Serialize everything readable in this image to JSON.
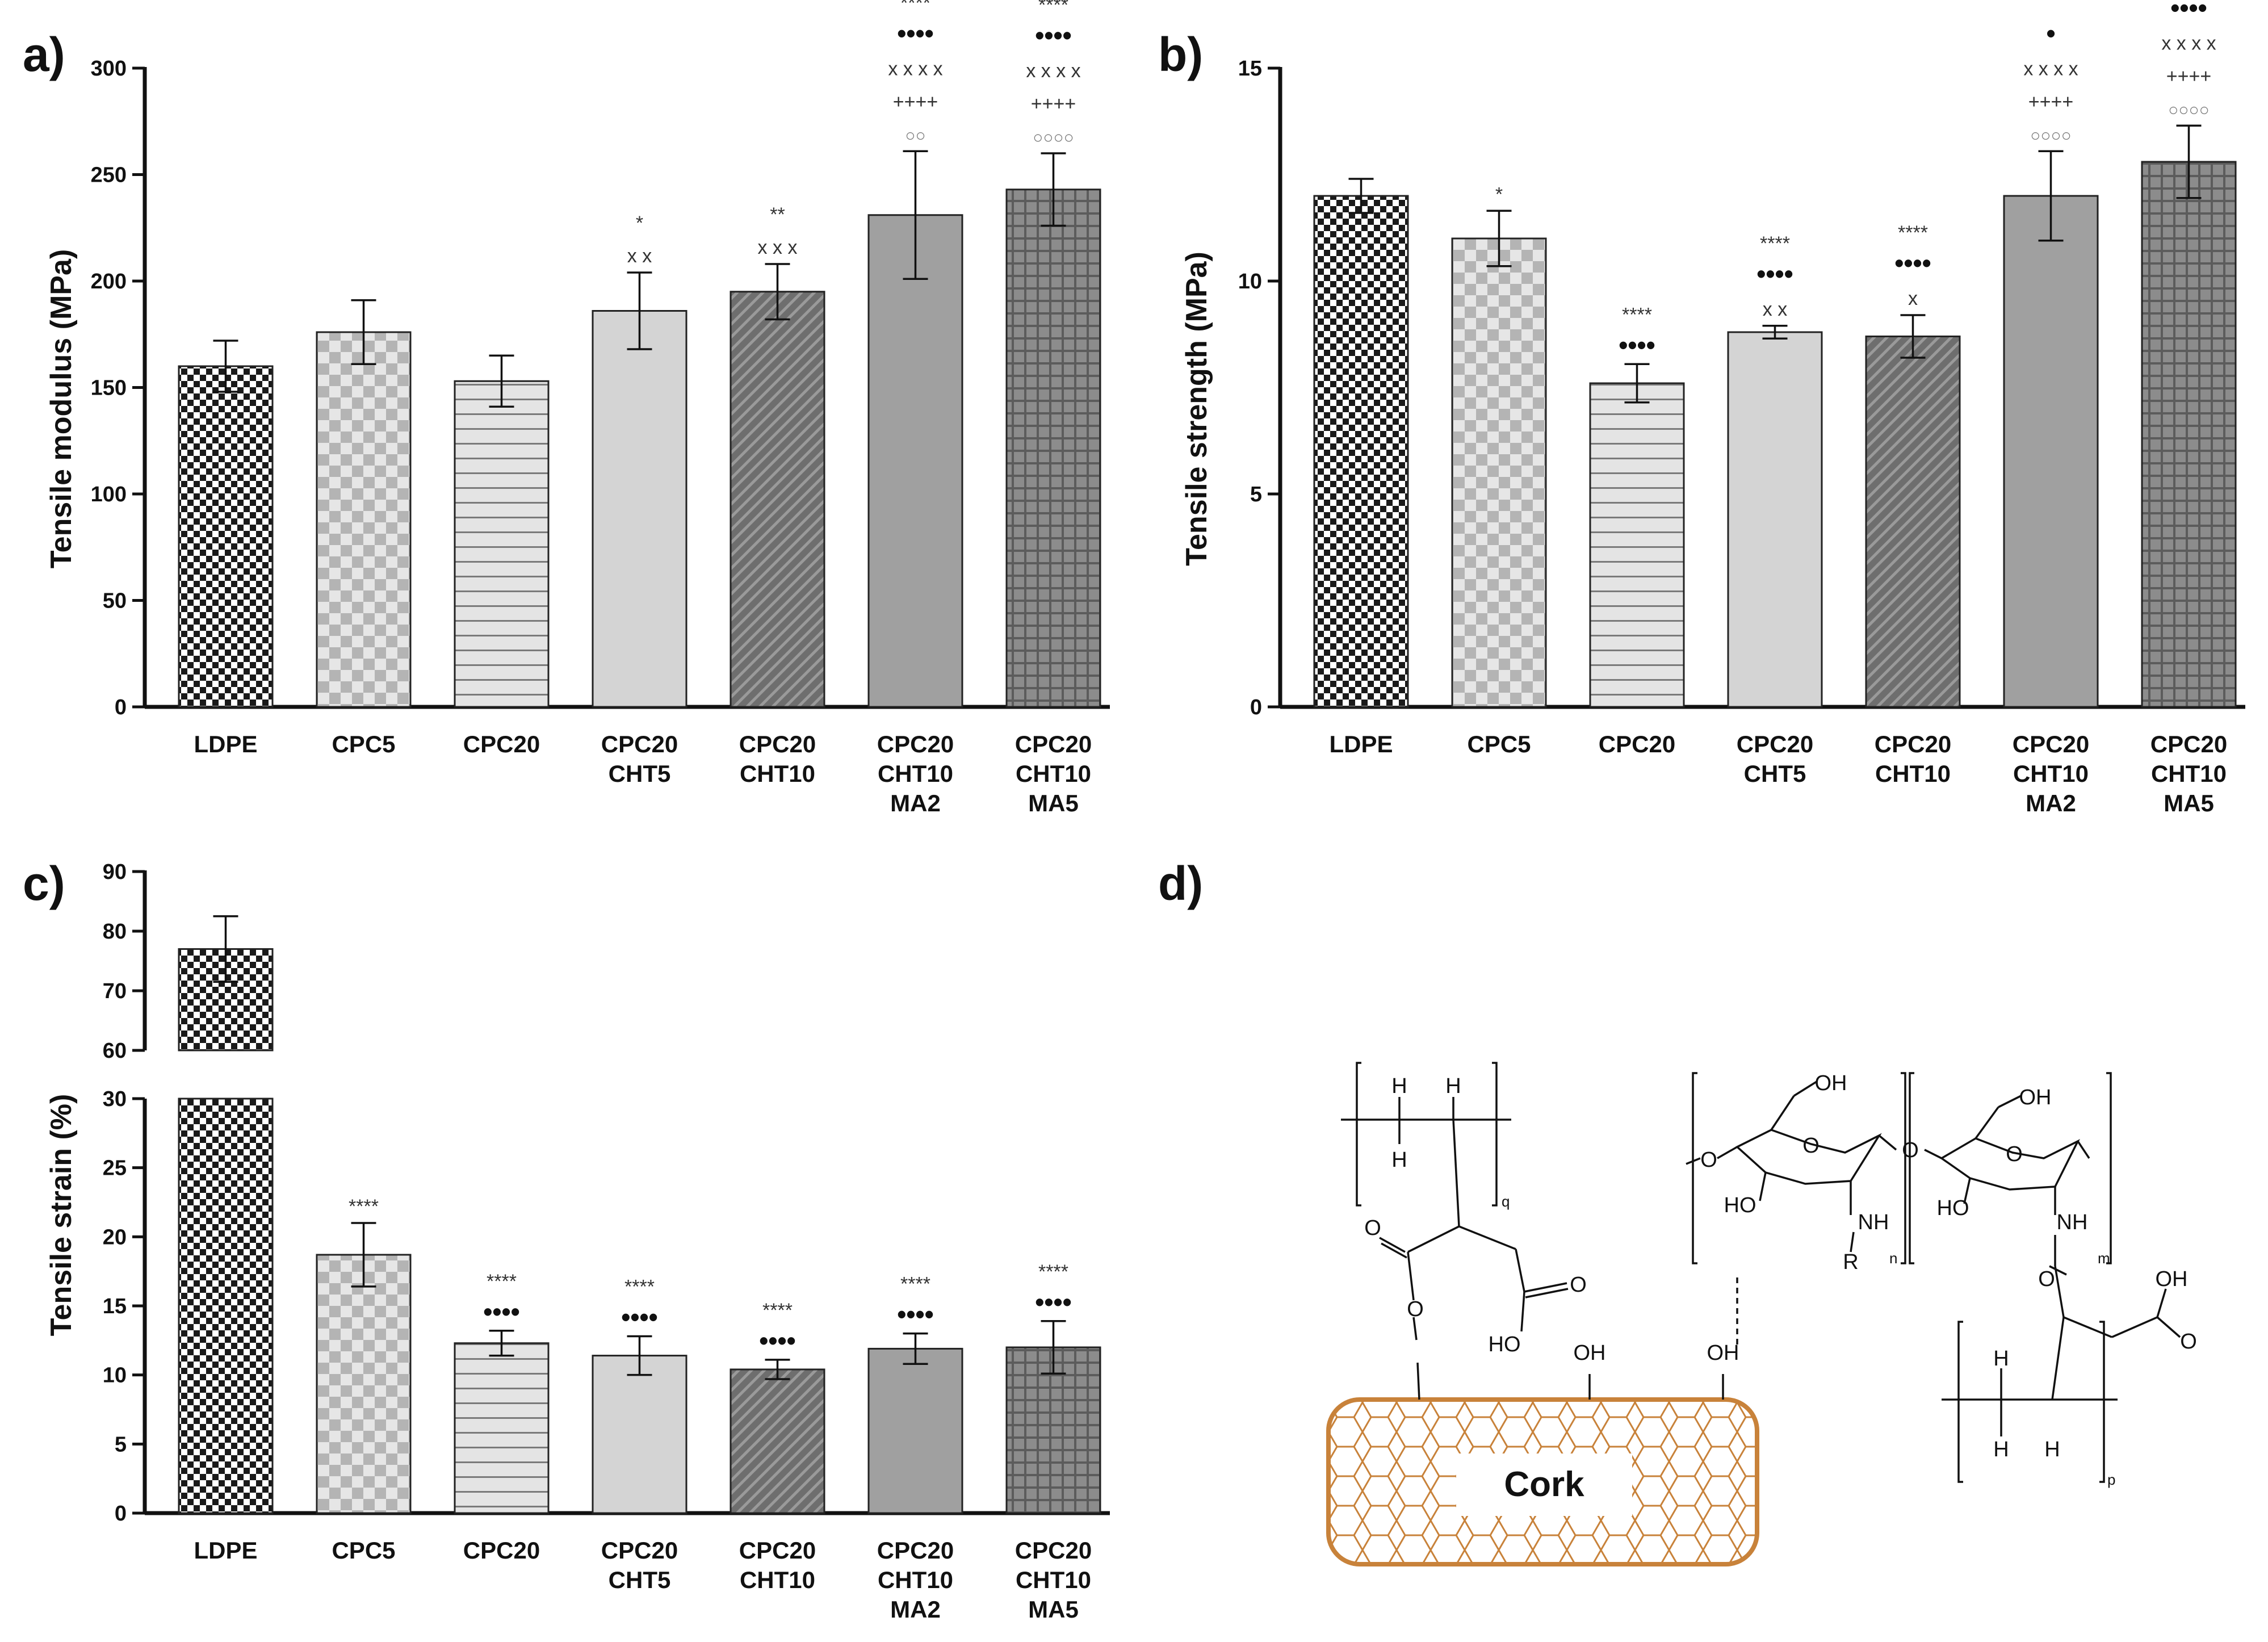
{
  "chart_data": [
    {
      "id": "a",
      "type": "bar",
      "panel_label": "a)",
      "ylabel": "Tensile modulus (MPa)",
      "ylim": [
        0,
        300
      ],
      "yticks": [
        0,
        50,
        100,
        150,
        200,
        250,
        300
      ],
      "categories": [
        [
          "LDPE"
        ],
        [
          "CPC5"
        ],
        [
          "CPC20"
        ],
        [
          "CPC20",
          "CHT5"
        ],
        [
          "CPC20",
          "CHT10"
        ],
        [
          "CPC20",
          "CHT10",
          "MA2"
        ],
        [
          "CPC20",
          "CHT10",
          "MA5"
        ]
      ],
      "values": [
        160,
        176,
        153,
        186,
        195,
        231,
        243
      ],
      "errors": [
        12,
        15,
        12,
        18,
        13,
        30,
        17
      ],
      "significance": [
        [],
        [],
        [],
        [
          "*",
          "x x"
        ],
        [
          "**",
          "x x x"
        ],
        [
          "****",
          "••••",
          "x x x x",
          "++++",
          "○○"
        ],
        [
          "****",
          "••••",
          "x x x x",
          "++++",
          "○○○○"
        ]
      ]
    },
    {
      "id": "b",
      "type": "bar",
      "panel_label": "b)",
      "ylabel": "Tensile strength (MPa)",
      "ylim": [
        0,
        15
      ],
      "yticks": [
        0,
        5,
        10,
        15
      ],
      "categories": [
        [
          "LDPE"
        ],
        [
          "CPC5"
        ],
        [
          "CPC20"
        ],
        [
          "CPC20",
          "CHT5"
        ],
        [
          "CPC20",
          "CHT10"
        ],
        [
          "CPC20",
          "CHT10",
          "MA2"
        ],
        [
          "CPC20",
          "CHT10",
          "MA5"
        ]
      ],
      "values": [
        12.0,
        11.0,
        7.6,
        8.8,
        8.7,
        12.0,
        12.8
      ],
      "errors": [
        0.4,
        0.65,
        0.45,
        0.15,
        0.5,
        1.05,
        0.85
      ],
      "significance": [
        [],
        [
          "*"
        ],
        [
          "****",
          "••••"
        ],
        [
          "****",
          "••••",
          "x x"
        ],
        [
          "****",
          "••••",
          "x"
        ],
        [
          "•",
          "x x x x",
          "++++",
          "○○○○"
        ],
        [
          "••••",
          "x x x x",
          "++++",
          "○○○○"
        ]
      ]
    },
    {
      "id": "c",
      "type": "bar",
      "panel_label": "c)",
      "ylabel": "Tensile strain (%)",
      "broken_axis": true,
      "ylim_lower": [
        0,
        30
      ],
      "ylim_upper": [
        60,
        90
      ],
      "yticks_lower": [
        0,
        5,
        10,
        15,
        20,
        25,
        30
      ],
      "yticks_upper": [
        60,
        70,
        80,
        90
      ],
      "categories": [
        [
          "LDPE"
        ],
        [
          "CPC5"
        ],
        [
          "CPC20"
        ],
        [
          "CPC20",
          "CHT5"
        ],
        [
          "CPC20",
          "CHT10"
        ],
        [
          "CPC20",
          "CHT10",
          "MA2"
        ],
        [
          "CPC20",
          "CHT10",
          "MA5"
        ]
      ],
      "values": [
        77,
        18.7,
        12.3,
        11.4,
        10.4,
        11.9,
        12.0
      ],
      "errors": [
        5.5,
        2.3,
        0.9,
        1.4,
        0.7,
        1.1,
        1.9
      ],
      "significance": [
        [],
        [
          "****"
        ],
        [
          "****",
          "••••"
        ],
        [
          "****",
          "••••"
        ],
        [
          "****",
          "••••"
        ],
        [
          "****",
          "••••"
        ],
        [
          "****",
          "••••"
        ]
      ]
    }
  ],
  "scheme": {
    "panel_label": "d)",
    "core_label": "Cork",
    "atoms": {
      "H": "H",
      "OH": "OH",
      "O": "O",
      "HO": "HO",
      "NH": "NH",
      "R": "R"
    },
    "subscripts": {
      "q": "q",
      "n": "n",
      "m": "m",
      "p": "p"
    }
  },
  "colors": {
    "axis": "#111111",
    "cork_outline": "#c8823a",
    "bar_dark": "#5a5a5a",
    "bar_light": "#cfcfcf",
    "bar_mid": "#9a9a9a"
  }
}
